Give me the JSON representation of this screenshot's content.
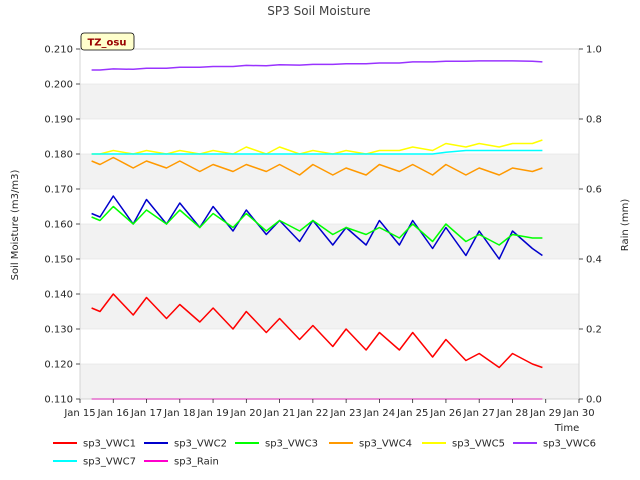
{
  "chart_data": {
    "type": "line",
    "title": "SP3 Soil Moisture",
    "xlabel": "Time",
    "ylabel": "Soil Moisture (m3/m3)",
    "y2label": "Rain (mm)",
    "tag": "TZ_osu",
    "x_ticks": [
      "Jan 15",
      "Jan 16",
      "Jan 17",
      "Jan 18",
      "Jan 19",
      "Jan 20",
      "Jan 21",
      "Jan 22",
      "Jan 23",
      "Jan 24",
      "Jan 25",
      "Jan 26",
      "Jan 27",
      "Jan 28",
      "Jan 29",
      "Jan 30"
    ],
    "xlim": [
      "2000-01-15",
      "2000-01-30"
    ],
    "ylim": [
      0.11,
      0.21
    ],
    "y_ticks": [
      "0.110",
      "0.120",
      "0.130",
      "0.140",
      "0.150",
      "0.160",
      "0.170",
      "0.180",
      "0.190",
      "0.200",
      "0.210"
    ],
    "y2lim": [
      0.0,
      1.0
    ],
    "y2_ticks": [
      "0.0",
      "0.2",
      "0.4",
      "0.6",
      "0.8",
      "1.0"
    ],
    "grid": true,
    "legend_position": "bottom",
    "x_days_from_jan15": [
      0.35,
      0.6,
      1.0,
      1.6,
      2.0,
      2.6,
      3.0,
      3.6,
      4.0,
      4.6,
      5.0,
      5.6,
      6.0,
      6.6,
      7.0,
      7.6,
      8.0,
      8.6,
      9.0,
      9.6,
      10.0,
      10.6,
      11.0,
      11.6,
      12.0,
      12.6,
      13.0,
      13.6,
      13.9
    ],
    "series": [
      {
        "name": "sp3_VWC1",
        "color": "#ff0000",
        "axis": "left",
        "values": [
          0.136,
          0.135,
          0.14,
          0.134,
          0.139,
          0.133,
          0.137,
          0.132,
          0.136,
          0.13,
          0.135,
          0.129,
          0.133,
          0.127,
          0.131,
          0.125,
          0.13,
          0.124,
          0.129,
          0.124,
          0.129,
          0.122,
          0.127,
          0.121,
          0.123,
          0.119,
          0.123,
          0.12,
          0.119
        ]
      },
      {
        "name": "sp3_VWC2",
        "color": "#0000cc",
        "axis": "left",
        "values": [
          0.163,
          0.162,
          0.168,
          0.16,
          0.167,
          0.16,
          0.166,
          0.159,
          0.165,
          0.158,
          0.164,
          0.157,
          0.161,
          0.155,
          0.161,
          0.154,
          0.159,
          0.154,
          0.161,
          0.154,
          0.161,
          0.153,
          0.159,
          0.151,
          0.158,
          0.15,
          0.158,
          0.153,
          0.151
        ]
      },
      {
        "name": "sp3_VWC3",
        "color": "#00ff00",
        "axis": "left",
        "values": [
          0.162,
          0.161,
          0.165,
          0.16,
          0.164,
          0.16,
          0.164,
          0.159,
          0.163,
          0.159,
          0.163,
          0.158,
          0.161,
          0.158,
          0.161,
          0.157,
          0.159,
          0.157,
          0.159,
          0.156,
          0.16,
          0.155,
          0.16,
          0.155,
          0.157,
          0.154,
          0.157,
          0.156,
          0.156
        ]
      },
      {
        "name": "sp3_VWC4",
        "color": "#ff9900",
        "axis": "left",
        "values": [
          0.178,
          0.177,
          0.179,
          0.176,
          0.178,
          0.176,
          0.178,
          0.175,
          0.177,
          0.175,
          0.177,
          0.175,
          0.177,
          0.174,
          0.177,
          0.174,
          0.176,
          0.174,
          0.177,
          0.175,
          0.177,
          0.174,
          0.177,
          0.174,
          0.176,
          0.174,
          0.176,
          0.175,
          0.176
        ]
      },
      {
        "name": "sp3_VWC5",
        "color": "#ffff00",
        "axis": "left",
        "values": [
          0.18,
          0.18,
          0.181,
          0.18,
          0.181,
          0.18,
          0.181,
          0.18,
          0.181,
          0.18,
          0.182,
          0.18,
          0.182,
          0.18,
          0.181,
          0.18,
          0.181,
          0.18,
          0.181,
          0.181,
          0.182,
          0.181,
          0.183,
          0.182,
          0.183,
          0.182,
          0.183,
          0.183,
          0.184
        ]
      },
      {
        "name": "sp3_VWC6",
        "color": "#9933ff",
        "axis": "left",
        "values": [
          0.204,
          0.204,
          0.2043,
          0.2042,
          0.2045,
          0.2045,
          0.2048,
          0.2048,
          0.205,
          0.205,
          0.2053,
          0.2052,
          0.2055,
          0.2054,
          0.2056,
          0.2056,
          0.2058,
          0.2058,
          0.206,
          0.206,
          0.2063,
          0.2063,
          0.2065,
          0.2065,
          0.2066,
          0.2066,
          0.2066,
          0.2065,
          0.2063
        ]
      },
      {
        "name": "sp3_VWC7",
        "color": "#00ffff",
        "axis": "left",
        "values": [
          0.18,
          0.18,
          0.18,
          0.18,
          0.18,
          0.18,
          0.18,
          0.18,
          0.18,
          0.18,
          0.18,
          0.18,
          0.18,
          0.18,
          0.18,
          0.18,
          0.18,
          0.18,
          0.18,
          0.18,
          0.18,
          0.18,
          0.1805,
          0.181,
          0.181,
          0.181,
          0.181,
          0.181,
          0.181
        ]
      },
      {
        "name": "sp3_Rain",
        "color": "#ff00cc",
        "axis": "right",
        "values": [
          0.0,
          0.0,
          0.0,
          0.0,
          0.0,
          0.0,
          0.0,
          0.0,
          0.0,
          0.0,
          0.0,
          0.0,
          0.0,
          0.0,
          0.0,
          0.0,
          0.0,
          0.0,
          0.0,
          0.0,
          0.0,
          0.0,
          0.0,
          0.0,
          0.0,
          0.0,
          0.0,
          0.0,
          0.0
        ]
      }
    ]
  }
}
